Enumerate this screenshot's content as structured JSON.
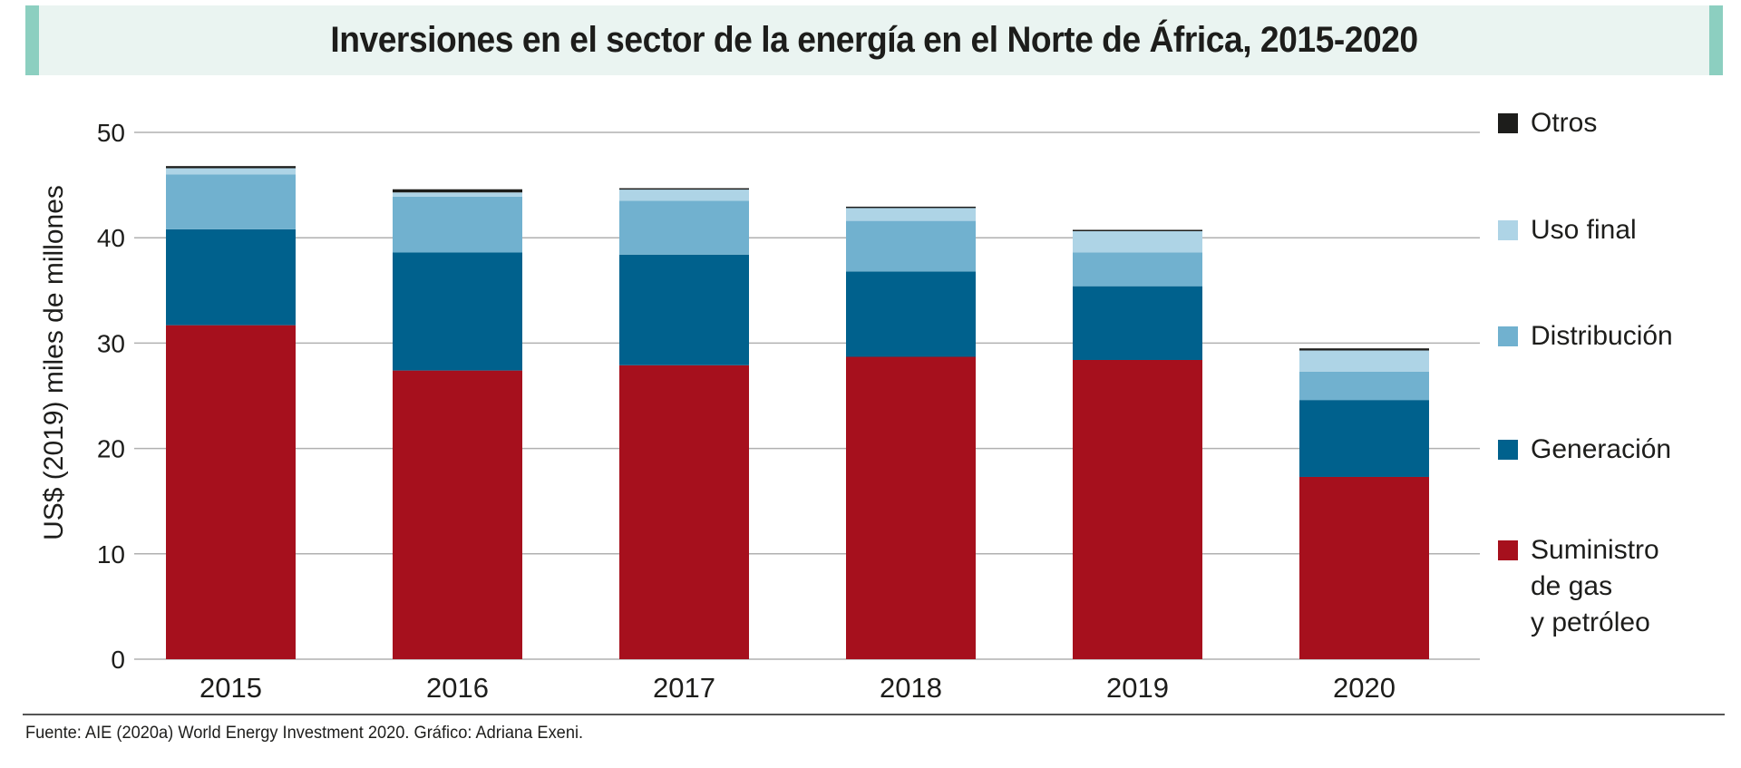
{
  "title": "Inversiones en el sector de la energía en el Norte de África, 2015-2020",
  "footer": "Fuente: AIE (2020a) World Energy Investment 2020. Gráfico: Adriana Exeni.",
  "colors": {
    "title_bg": "#eaf4f1",
    "title_accent": "#8ccfc0",
    "gridline": "#b0b0b0"
  },
  "chart_data": {
    "type": "bar",
    "stacked": true,
    "title": "Inversiones en el sector de la energía en el Norte de África, 2015-2020",
    "xlabel": "",
    "ylabel": "US$ (2019) miles de millones",
    "ylim": [
      0,
      50
    ],
    "yticks": [
      0,
      10,
      20,
      30,
      40,
      50
    ],
    "grid": true,
    "legend_position": "right",
    "categories": [
      "2015",
      "2016",
      "2017",
      "2018",
      "2019",
      "2020"
    ],
    "series": [
      {
        "name": "Suministro de gas y petróleo",
        "legend_label": "Suministro\nde gas\ny petróleo",
        "color": "#a6101d",
        "values": [
          31.7,
          27.4,
          27.9,
          28.7,
          28.4,
          17.3
        ]
      },
      {
        "name": "Generación",
        "legend_label": "Generación",
        "color": "#00618d",
        "values": [
          9.1,
          11.2,
          10.5,
          8.1,
          7.0,
          7.3
        ]
      },
      {
        "name": "Distribución",
        "legend_label": "Distribución",
        "color": "#71b1cf",
        "values": [
          5.2,
          5.3,
          5.1,
          4.8,
          3.2,
          2.7
        ]
      },
      {
        "name": "Uso final",
        "legend_label": "Uso final",
        "color": "#aed4e6",
        "values": [
          0.6,
          0.4,
          1.1,
          1.3,
          2.1,
          2.0
        ]
      },
      {
        "name": "Otros",
        "legend_label": "Otros",
        "color": "#1d1d1b",
        "values": [
          0.2,
          0.3,
          0.1,
          0.05,
          0.05,
          0.2
        ]
      }
    ]
  }
}
